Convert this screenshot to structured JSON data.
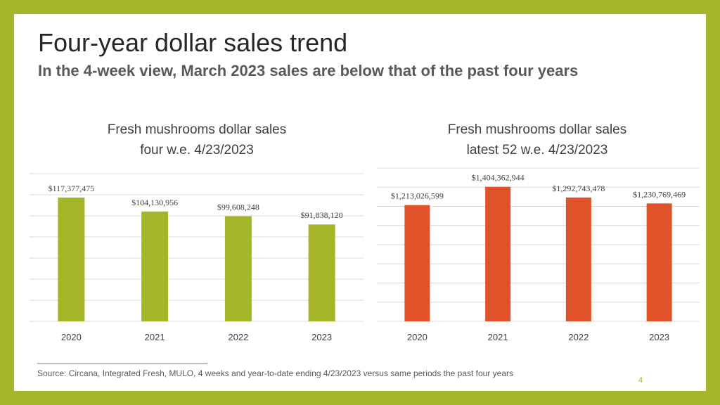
{
  "slide": {
    "title": "Four-year dollar sales trend",
    "subtitle": "In the 4-week view, March 2023 sales are below that of the past four years",
    "source": "Source: Circana, Integrated Fresh, MULO, 4 weeks and year-to-date ending 4/23/2023 versus same periods the past four years",
    "page_number": "4",
    "colors": {
      "border": "#a4b628",
      "green_bar": "#a4b628",
      "orange_bar": "#e0522a",
      "gridline": "#d9d9d9"
    }
  },
  "chart_data": [
    {
      "type": "bar",
      "title_line1": "Fresh mushrooms dollar sales",
      "title_line2": "four w.e. 4/23/2023",
      "categories": [
        "2020",
        "2021",
        "2022",
        "2023"
      ],
      "values": [
        117377475,
        104130956,
        99608248,
        91838120
      ],
      "data_labels": [
        "$117,377,475",
        "$104,130,956",
        "$99,608,248",
        "$91,838,120"
      ],
      "ylim": [
        0,
        140000000
      ],
      "gridlines": true,
      "color": "#a4b628"
    },
    {
      "type": "bar",
      "title_line1": "Fresh mushrooms dollar sales",
      "title_line2": "latest 52 w.e. 4/23/2023",
      "categories": [
        "2020",
        "2021",
        "2022",
        "2023"
      ],
      "values": [
        1213026599,
        1404362944,
        1292743478,
        1230769469
      ],
      "data_labels": [
        "$1,213,026,599",
        "$1,404,362,944",
        "$1,292,743,478",
        "$1,230,769,469"
      ],
      "ylim": [
        0,
        1600000000
      ],
      "gridlines": true,
      "color": "#e0522a"
    }
  ]
}
